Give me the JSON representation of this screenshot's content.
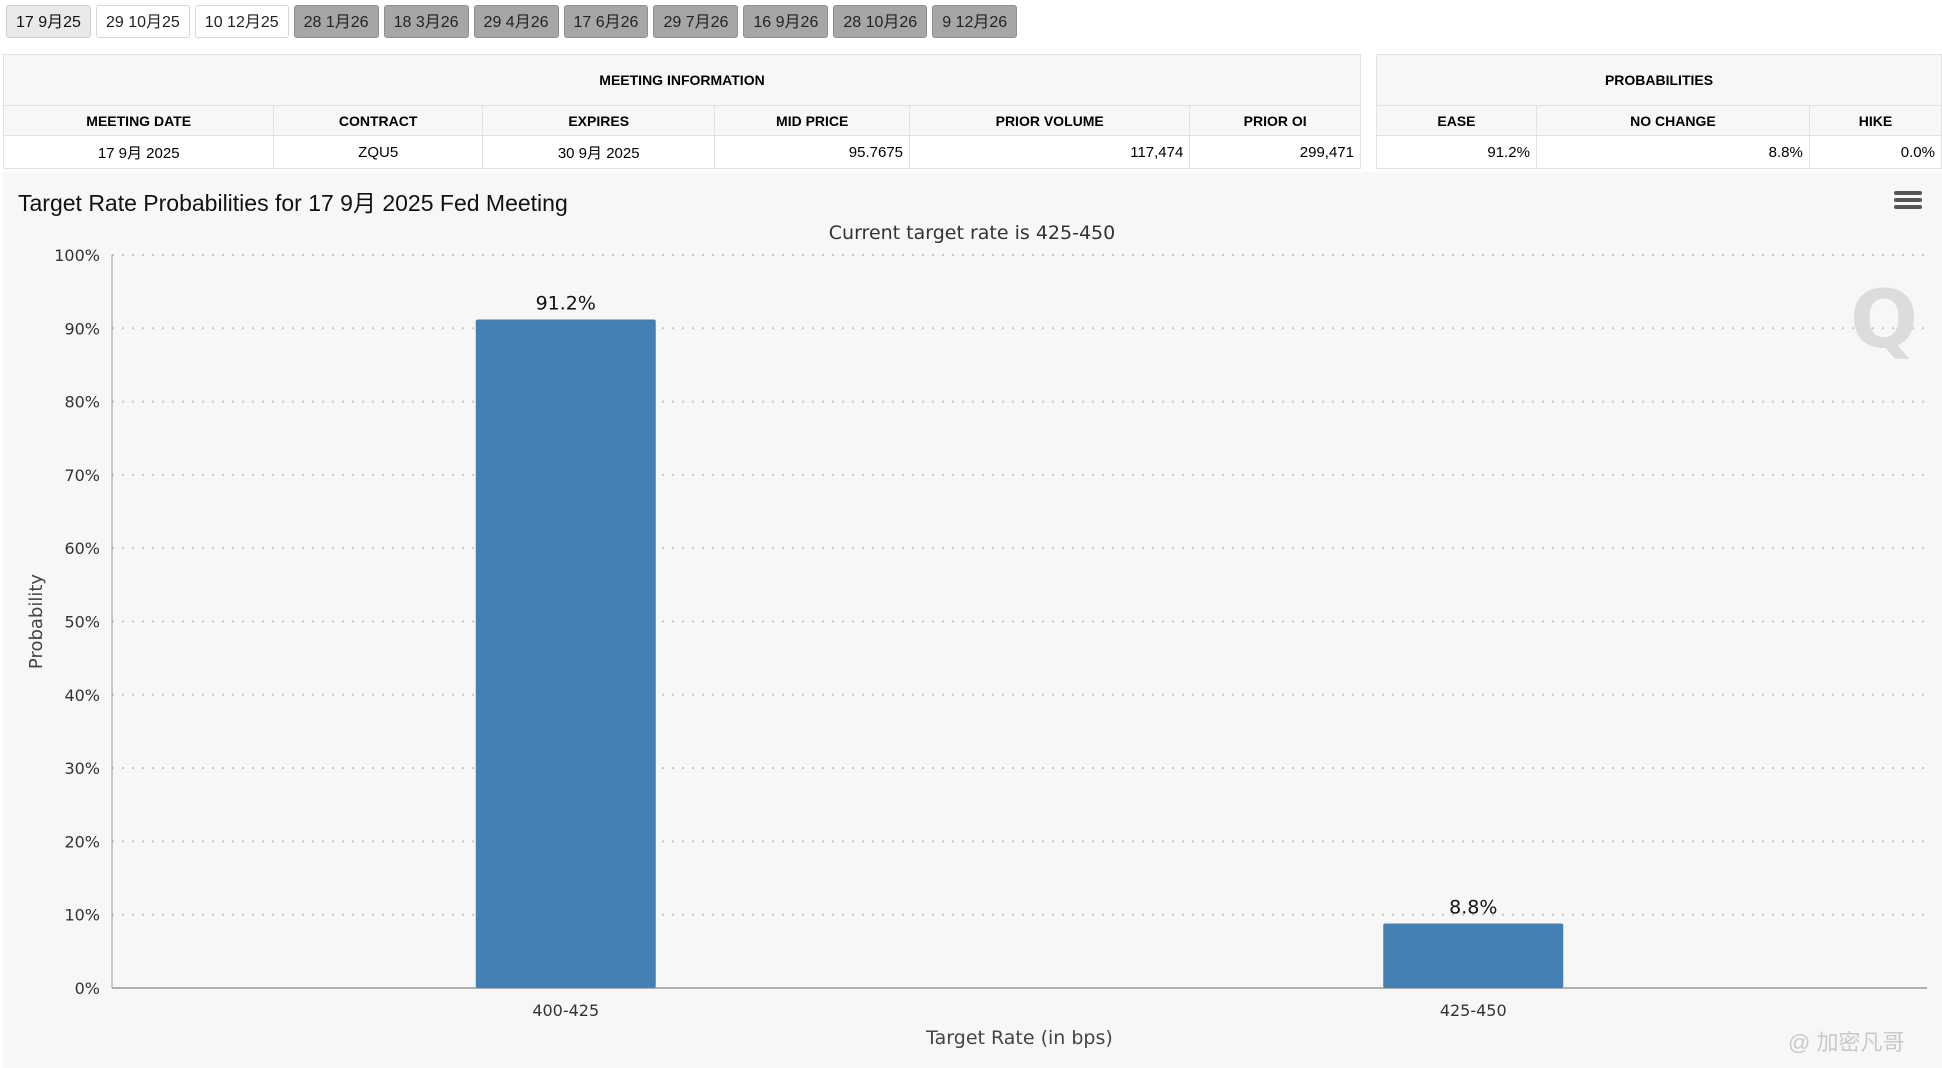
{
  "meeting_tabs": [
    {
      "label": "17 9月25",
      "state": "active"
    },
    {
      "label": "29 10月25",
      "state": "white"
    },
    {
      "label": "10 12月25",
      "state": "white"
    },
    {
      "label": "28 1月26",
      "state": "grey"
    },
    {
      "label": "18 3月26",
      "state": "grey"
    },
    {
      "label": "29 4月26",
      "state": "grey"
    },
    {
      "label": "17 6月26",
      "state": "grey"
    },
    {
      "label": "29 7月26",
      "state": "grey"
    },
    {
      "label": "16 9月26",
      "state": "grey"
    },
    {
      "label": "28 10月26",
      "state": "grey"
    },
    {
      "label": "9 12月26",
      "state": "grey"
    }
  ],
  "meeting_info": {
    "heading": "MEETING INFORMATION",
    "columns": {
      "meeting_date": "MEETING DATE",
      "contract": "CONTRACT",
      "expires": "EXPIRES",
      "mid_price": "MID PRICE",
      "prior_volume": "PRIOR VOLUME",
      "prior_oi": "PRIOR OI"
    },
    "row": {
      "meeting_date": "17 9月 2025",
      "contract": "ZQU5",
      "expires": "30 9月 2025",
      "mid_price": "95.7675",
      "prior_volume": "117,474",
      "prior_oi": "299,471"
    }
  },
  "probabilities": {
    "heading": "PROBABILITIES",
    "columns": {
      "ease": "EASE",
      "no_change": "NO CHANGE",
      "hike": "HIKE"
    },
    "row": {
      "ease": "91.2%",
      "no_change": "8.8%",
      "hike": "0.0%"
    }
  },
  "chart": {
    "title": "Target Rate Probabilities for 17 9月 2025 Fed Meeting",
    "subtitle": "Current target rate is 425-450",
    "watermark": "Q",
    "menu_icon": "hamburger-menu-icon"
  },
  "chart_data": {
    "type": "bar",
    "categories": [
      "400-425",
      "425-450"
    ],
    "values": [
      91.2,
      8.8
    ],
    "data_labels": [
      "91.2%",
      "8.8%"
    ],
    "xlabel": "Target Rate (in bps)",
    "ylabel": "Probability",
    "ylim": [
      0,
      100
    ],
    "yticks": [
      "0%",
      "10%",
      "20%",
      "30%",
      "40%",
      "50%",
      "60%",
      "70%",
      "80%",
      "90%",
      "100%"
    ],
    "grid": true,
    "bar_color": "#4480b4"
  },
  "footer_watermark": "@ 加密凡哥"
}
